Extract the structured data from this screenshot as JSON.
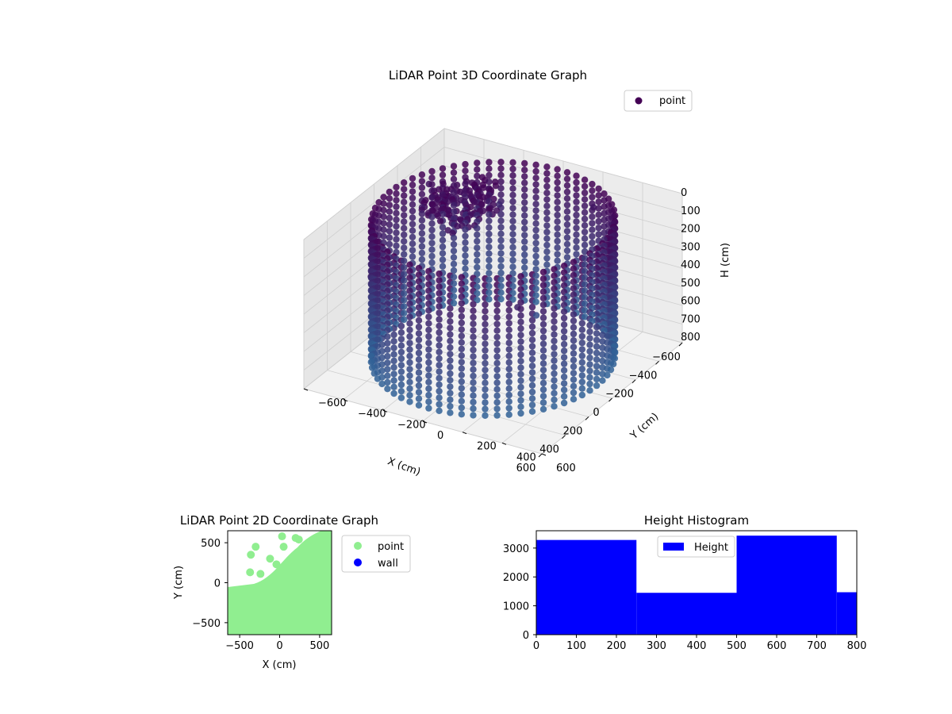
{
  "chart_data": [
    {
      "type": "scatter",
      "projection": "3d",
      "title": "LiDAR Point 3D Coordinate Graph",
      "xlabel": "X (cm)",
      "ylabel": "Y (cm)",
      "zlabel": "H (cm)",
      "xlim": [
        -600,
        600
      ],
      "ylim": [
        -600,
        600
      ],
      "zlim": [
        0,
        800
      ],
      "z_inverted": true,
      "x_ticks": [
        "−600",
        "−400",
        "−200",
        "0",
        "200",
        "400",
        "600"
      ],
      "y_ticks": [
        "−600",
        "−400",
        "−200",
        "0",
        "200",
        "400",
        "600"
      ],
      "z_ticks": [
        "0",
        "100",
        "200",
        "300",
        "400",
        "500",
        "600",
        "700",
        "800"
      ],
      "grid": true,
      "legend": {
        "position": "top-right",
        "entries": [
          "point"
        ]
      },
      "colors": {
        "top": "#440154",
        "bottom": "#30679a",
        "pane": "#f0f0f0"
      },
      "series": [
        {
          "name": "point",
          "description_shape": "ring wall of points, radius ~550 cm around origin, heights 0-800 cm, plus cluster near ceiling and sparse outliers"
        }
      ]
    },
    {
      "type": "scatter",
      "title": "LiDAR Point 2D Coordinate Graph",
      "xlabel": "X (cm)",
      "ylabel": "Y (cm)",
      "xlim": [
        -650,
        650
      ],
      "ylim": [
        -650,
        650
      ],
      "x_ticks": [
        "−500",
        "0",
        "500"
      ],
      "y_ticks": [
        "−500",
        "0",
        "500"
      ],
      "legend": {
        "position": "right outside",
        "entries": [
          "point",
          "wall"
        ]
      },
      "colors": {
        "point": "#90ee90",
        "wall": "#0000ff"
      },
      "series": [
        {
          "name": "point"
        },
        {
          "name": "wall"
        }
      ]
    },
    {
      "type": "bar",
      "title": "Height Histogram",
      "xlim": [
        0,
        800
      ],
      "ylim": [
        0,
        3600
      ],
      "x_ticks": [
        "0",
        "100",
        "200",
        "300",
        "400",
        "500",
        "600",
        "700",
        "800"
      ],
      "y_ticks": [
        "0",
        "1000",
        "2000",
        "3000"
      ],
      "legend": {
        "position": "top-center",
        "entries": [
          "Height"
        ]
      },
      "colors": {
        "bar": "#0000ff"
      },
      "bins": [
        {
          "start": 0,
          "end": 250,
          "count": 3280
        },
        {
          "start": 250,
          "end": 500,
          "count": 1450
        },
        {
          "start": 500,
          "end": 750,
          "count": 3430
        },
        {
          "start": 750,
          "end": 800,
          "count": 1470
        }
      ],
      "series": [
        {
          "name": "Height"
        }
      ]
    }
  ]
}
